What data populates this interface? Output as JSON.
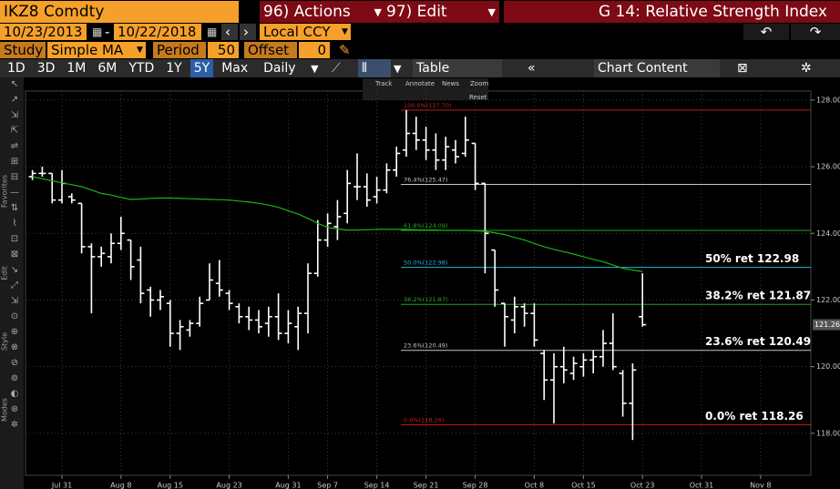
{
  "header": {
    "ticker": "IKZ8 Comdty",
    "actions": "96) Actions",
    "edit": "97) Edit",
    "function": "G 14: Relative Strength Index"
  },
  "range": {
    "start": "10/23/2013",
    "dash": "-",
    "end": "10/22/2018",
    "currency": "Local CCY"
  },
  "study": {
    "label": "Study",
    "type": "Simple MA",
    "period_label": "Period",
    "period": "50",
    "offset_label": "Offset",
    "offset": "0"
  },
  "toolbar": {
    "periods": [
      "1D",
      "3D",
      "1M",
      "6M",
      "YTD",
      "1Y",
      "5Y",
      "Max"
    ],
    "selected": "5Y",
    "frequency": "Daily",
    "table": "Table",
    "content": "Chart Content"
  },
  "chart_tools": [
    "Track",
    "Annotate",
    "News",
    "Zoom",
    "Reset"
  ],
  "sidebar": [
    "Favorites",
    "Edit",
    "Style",
    "Modes"
  ],
  "chart_data": {
    "type": "ohlc",
    "categories": [
      null,
      null,
      null,
      "Jul 31",
      null,
      null,
      null,
      null,
      null,
      "Aug 8",
      null,
      null,
      null,
      null,
      "Aug 15",
      null,
      null,
      null,
      null,
      null,
      "Aug 23",
      null,
      null,
      null,
      null,
      null,
      "Aug 31",
      null,
      null,
      null,
      "Sep 7",
      null,
      null,
      null,
      null,
      "Sep 14",
      null,
      null,
      null,
      null,
      "Sep 21",
      null,
      null,
      null,
      null,
      "Sep 28",
      null,
      null,
      null,
      null,
      null,
      "Oct 8",
      null,
      null,
      null,
      null,
      "Oct 15",
      null,
      null,
      null,
      null,
      null,
      "Oct 23",
      null,
      null,
      null,
      null,
      null,
      "Oct 31",
      null,
      null,
      null,
      null,
      null,
      "Nov 8",
      null,
      null,
      null,
      null,
      null
    ],
    "open": [
      125.7,
      125.8,
      125.8,
      125.0,
      125.1,
      124.9,
      123.6,
      123.3,
      123.3,
      123.7,
      123.8,
      123.2,
      122.3,
      122.0,
      121.9,
      121.0,
      121.1,
      121.3,
      122.0,
      122.5,
      122.2,
      121.8,
      121.5,
      121.4,
      121.3,
      121.5,
      121.0,
      121.2,
      121.6,
      122.8,
      123.8,
      124.2,
      124.6,
      125.4,
      125.4,
      125.1,
      125.3,
      125.9,
      126.5,
      127.0,
      126.8,
      126.5,
      126.2,
      126.5,
      126.4,
      126.7,
      125.5,
      123.5,
      121.9,
      121.4,
      121.8,
      121.6,
      120.4,
      119.6,
      120.0,
      119.8,
      120.0,
      120.2,
      120.3,
      120.7,
      119.8,
      118.9,
      121.5,
      null,
      null,
      null,
      null,
      null,
      null,
      null,
      null,
      null,
      null,
      null,
      null,
      null,
      null,
      null,
      null,
      null
    ],
    "high": [
      125.9,
      126.0,
      125.8,
      125.9,
      125.2,
      124.9,
      123.7,
      123.6,
      124.0,
      124.5,
      123.8,
      123.6,
      122.4,
      122.3,
      122.0,
      121.4,
      121.4,
      122.1,
      123.1,
      123.2,
      122.3,
      121.9,
      121.8,
      121.7,
      121.8,
      122.2,
      121.7,
      121.8,
      123.1,
      124.4,
      124.6,
      125.0,
      125.9,
      126.4,
      125.8,
      125.7,
      126.1,
      126.6,
      127.7,
      127.5,
      127.2,
      127.0,
      126.9,
      126.8,
      127.5,
      126.7,
      125.5,
      123.5,
      121.9,
      122.1,
      121.9,
      121.9,
      120.5,
      120.4,
      120.6,
      120.3,
      120.4,
      120.5,
      121.1,
      121.6,
      119.9,
      120.1,
      122.8,
      null,
      null,
      null,
      null,
      null,
      null,
      null,
      null,
      null,
      null,
      null,
      null,
      null,
      null,
      null,
      null,
      null
    ],
    "low": [
      125.6,
      125.7,
      124.9,
      124.9,
      124.9,
      123.4,
      121.6,
      123.0,
      123.1,
      123.5,
      122.6,
      121.9,
      121.5,
      121.7,
      120.6,
      120.5,
      120.9,
      121.2,
      122.0,
      122.1,
      121.7,
      121.3,
      121.1,
      121.0,
      120.9,
      120.8,
      120.7,
      120.5,
      121.0,
      122.7,
      123.6,
      123.8,
      124.3,
      125.0,
      124.8,
      124.9,
      125.2,
      125.7,
      126.3,
      126.5,
      126.2,
      125.9,
      125.9,
      126.1,
      126.3,
      125.3,
      122.8,
      121.8,
      120.6,
      121.0,
      121.2,
      120.6,
      119.0,
      118.3,
      119.5,
      119.6,
      119.7,
      119.8,
      120.0,
      119.9,
      118.5,
      117.8,
      121.2,
      null,
      null,
      null,
      null,
      null,
      null,
      null,
      null,
      null,
      null,
      null,
      null,
      null,
      null,
      null,
      null,
      null
    ],
    "close": [
      125.8,
      125.8,
      125.0,
      125.5,
      125.0,
      123.6,
      123.3,
      123.4,
      123.7,
      124.0,
      123.0,
      122.2,
      122.0,
      122.1,
      121.0,
      121.2,
      121.3,
      121.9,
      122.6,
      122.3,
      121.9,
      121.5,
      121.4,
      121.2,
      121.5,
      121.0,
      121.3,
      121.6,
      122.8,
      123.8,
      124.3,
      124.5,
      125.5,
      125.4,
      125.0,
      125.3,
      125.9,
      126.4,
      127.0,
      126.8,
      126.5,
      126.2,
      126.6,
      126.3,
      126.8,
      125.5,
      124.0,
      122.3,
      121.5,
      121.8,
      121.6,
      120.8,
      119.6,
      120.0,
      119.9,
      120.1,
      120.2,
      120.3,
      120.7,
      120.0,
      118.9,
      119.9,
      121.26,
      null,
      null,
      null,
      null,
      null,
      null,
      null,
      null,
      null,
      null,
      null,
      null,
      null,
      null,
      null,
      null,
      null
    ],
    "bar_color": "#ffffff",
    "ma": {
      "color": "#19b219",
      "values": [
        125.7,
        125.64,
        125.58,
        125.52,
        125.46,
        125.4,
        125.3,
        125.2,
        125.15,
        125.08,
        125.02,
        125.03,
        125.05,
        125.06,
        125.06,
        125.05,
        125.04,
        125.03,
        125.02,
        125.01,
        125.0,
        124.97,
        124.94,
        124.9,
        124.85,
        124.78,
        124.68,
        124.58,
        124.45,
        124.3,
        124.18,
        124.13,
        124.1,
        124.1,
        124.11,
        124.12,
        124.12,
        124.12,
        124.12,
        124.11,
        124.1,
        124.1,
        124.09,
        124.09,
        124.09,
        124.08,
        124.06,
        124.02,
        123.96,
        123.88,
        123.8,
        123.7,
        123.6,
        123.52,
        123.45,
        123.38,
        123.3,
        123.22,
        123.15,
        123.05,
        122.95,
        122.9,
        122.85,
        null,
        null,
        null,
        null,
        null,
        null,
        null,
        null,
        null,
        null,
        null,
        null,
        null,
        null,
        null,
        null,
        null
      ]
    },
    "ylim": [
      116.74,
      128.27
    ],
    "yticks": [
      {
        "value": 118,
        "label": "118.00"
      },
      {
        "value": 120,
        "label": "120.00"
      },
      {
        "value": 122,
        "label": "122.00"
      },
      {
        "value": 124,
        "label": "124.00"
      },
      {
        "value": 126,
        "label": "126.00"
      },
      {
        "value": 128,
        "label": "128.00"
      }
    ],
    "grid": true,
    "fib_levels": [
      {
        "label": "100.0%(127.70)",
        "value": 127.7,
        "color": "#b22222"
      },
      {
        "label": "76.4%(125.47)",
        "value": 125.47,
        "color": "#c8c8c8"
      },
      {
        "label": "61.8%(124.09)",
        "value": 124.09,
        "color": "#1fa51f"
      },
      {
        "label": "50.0%(122.98)",
        "value": 122.98,
        "color": "#20b8d8",
        "annotation": "50% ret 122.98"
      },
      {
        "label": "38.2%(121.87)",
        "value": 121.87,
        "color": "#1fa51f",
        "annotation": "38.2% ret 121.87"
      },
      {
        "label": "23.6%(120.49)",
        "value": 120.49,
        "color": "#c8c8c8",
        "annotation": "23.6% ret 120.49"
      },
      {
        "label": "0.0%(118.26)",
        "value": 118.26,
        "color": "#d01c1c",
        "annotation": "0.0% ret 118.26"
      }
    ],
    "last_price": {
      "value": 121.26,
      "label": "121.26"
    }
  }
}
